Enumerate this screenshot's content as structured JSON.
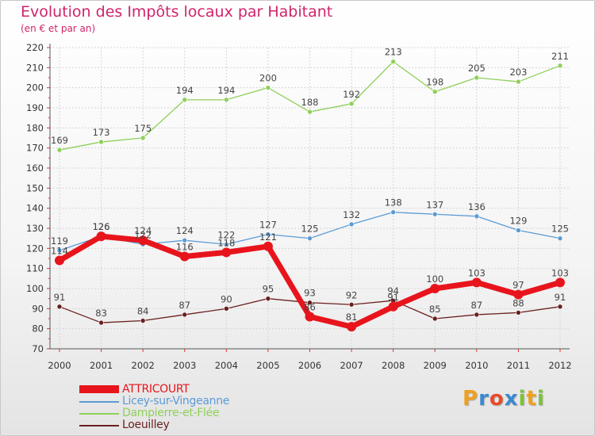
{
  "title": "Evolution des Impôts locaux par Habitant",
  "subtitle": "(en € et par an)",
  "logo": {
    "letters": [
      "P",
      "r",
      "o",
      "x",
      "i",
      "t",
      "i"
    ],
    "colors": [
      "#f0a020",
      "#3a8ad0",
      "#e84a2a",
      "#3a8ad0",
      "#7cc23a",
      "#f0a020",
      "#7cc23a"
    ]
  },
  "chart_data": {
    "type": "line",
    "title": "Evolution des Impôts locaux par Habitant",
    "subtitle": "(en € et par an)",
    "xlabel": "",
    "ylabel": "",
    "ylim": [
      70,
      220
    ],
    "yticks": [
      70,
      80,
      90,
      100,
      110,
      120,
      130,
      140,
      150,
      160,
      170,
      180,
      190,
      200,
      210,
      220
    ],
    "x": [
      "2000",
      "2001",
      "2002",
      "2003",
      "2004",
      "2005",
      "2006",
      "2007",
      "2008",
      "2009",
      "2010",
      "2011",
      "2012"
    ],
    "grid": true,
    "legend_position": "bottom-left",
    "series": [
      {
        "name": "ATTRICOURT",
        "color": "#e8141c",
        "values": [
          114,
          126,
          124,
          116,
          118,
          121,
          86,
          81,
          91,
          100,
          103,
          97,
          103
        ]
      },
      {
        "name": "Licey-sur-Vingeanne",
        "color": "#5b9bd5",
        "values": [
          119,
          126,
          122,
          124,
          122,
          127,
          125,
          132,
          138,
          137,
          136,
          129,
          125
        ]
      },
      {
        "name": "Dampierre-et-Flée",
        "color": "#8fd05a",
        "values": [
          169,
          173,
          175,
          194,
          194,
          200,
          188,
          192,
          213,
          198,
          205,
          203,
          211
        ]
      },
      {
        "name": "Loeuilley",
        "color": "#6b1f1f",
        "values": [
          91,
          83,
          84,
          87,
          90,
          95,
          93,
          92,
          94,
          85,
          87,
          88,
          91
        ]
      }
    ]
  }
}
